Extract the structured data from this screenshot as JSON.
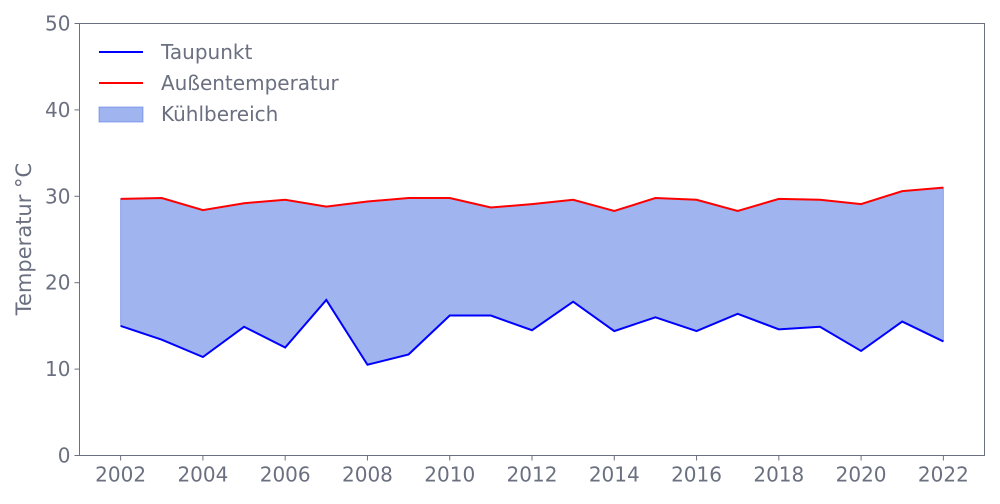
{
  "chart_data": {
    "type": "line",
    "title": "",
    "xlabel": "",
    "ylabel": "Temperatur °C",
    "xlim": [
      2001,
      2023
    ],
    "ylim": [
      0,
      50
    ],
    "x_ticks": [
      2002,
      2004,
      2006,
      2008,
      2010,
      2012,
      2014,
      2016,
      2018,
      2020,
      2022
    ],
    "y_ticks": [
      0,
      10,
      20,
      30,
      40,
      50
    ],
    "grid": false,
    "legend_position": "top-left",
    "x": [
      2002,
      2003,
      2004,
      2005,
      2006,
      2007,
      2008,
      2009,
      2010,
      2011,
      2012,
      2013,
      2014,
      2015,
      2016,
      2017,
      2018,
      2019,
      2020,
      2021,
      2022
    ],
    "series": [
      {
        "name": "Taupunkt",
        "color": "#0000ff",
        "values": [
          15.0,
          13.4,
          11.4,
          14.9,
          12.5,
          18.0,
          10.5,
          11.7,
          16.2,
          16.2,
          14.5,
          17.8,
          14.4,
          16.0,
          14.4,
          16.4,
          14.6,
          14.9,
          12.1,
          15.5,
          13.2
        ]
      },
      {
        "name": "Außentemperatur",
        "color": "#ff0000",
        "values": [
          29.7,
          29.8,
          28.4,
          29.2,
          29.6,
          28.8,
          29.4,
          29.8,
          29.8,
          28.7,
          29.1,
          29.6,
          28.3,
          29.8,
          29.6,
          28.3,
          29.7,
          29.6,
          29.1,
          30.6,
          31.0
        ]
      }
    ],
    "fill_between": {
      "name": "Kühlbereich",
      "color": "#4169e1",
      "opacity": 0.5
    }
  }
}
